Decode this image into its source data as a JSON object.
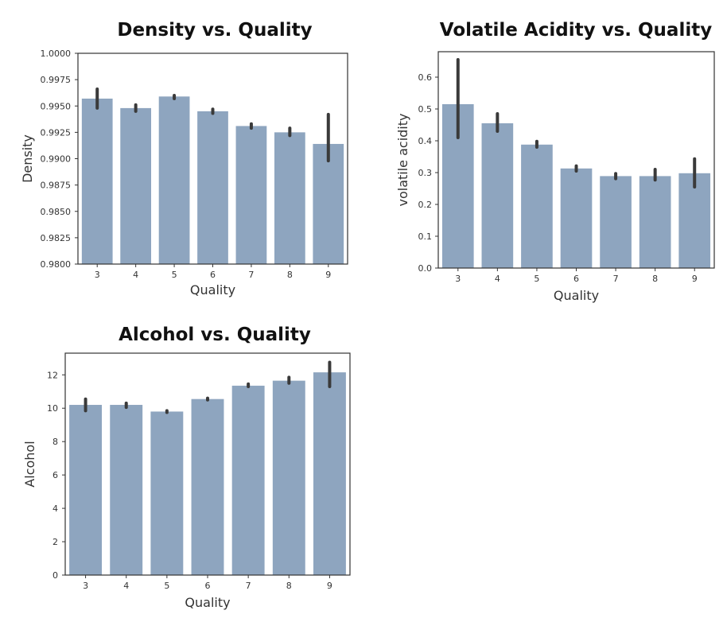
{
  "chart_data": [
    {
      "type": "bar",
      "title": "Density vs. Quality",
      "xlabel": "Quality",
      "ylabel": "Density",
      "categories": [
        "3",
        "4",
        "5",
        "6",
        "7",
        "8",
        "9"
      ],
      "values": [
        0.9957,
        0.9948,
        0.9959,
        0.9945,
        0.9931,
        0.9925,
        0.9914
      ],
      "error_low": [
        0.9948,
        0.9945,
        0.9957,
        0.9943,
        0.9929,
        0.9922,
        0.9898
      ],
      "error_high": [
        0.9966,
        0.9951,
        0.996,
        0.9947,
        0.9933,
        0.9929,
        0.9942
      ],
      "ylim": [
        0.98,
        1.0
      ],
      "yticks": [
        0.98,
        0.9825,
        0.985,
        0.9875,
        0.99,
        0.9925,
        0.995,
        0.9975,
        1.0
      ],
      "ytick_labels": [
        "0.9800",
        "0.9825",
        "0.9850",
        "0.9875",
        "0.9900",
        "0.9925",
        "0.9950",
        "0.9975",
        "1.0000"
      ],
      "grid": false,
      "bar_color": "#8ea5bf"
    },
    {
      "type": "bar",
      "title": "Volatile Acidity vs. Quality",
      "xlabel": "Quality",
      "ylabel": "volatile acidity",
      "categories": [
        "3",
        "4",
        "5",
        "6",
        "7",
        "8",
        "9"
      ],
      "values": [
        0.515,
        0.455,
        0.388,
        0.313,
        0.289,
        0.289,
        0.298
      ],
      "error_low": [
        0.41,
        0.43,
        0.38,
        0.305,
        0.281,
        0.277,
        0.255
      ],
      "error_high": [
        0.655,
        0.485,
        0.398,
        0.321,
        0.297,
        0.31,
        0.343
      ],
      "ylim": [
        0.0,
        0.68
      ],
      "yticks": [
        0.0,
        0.1,
        0.2,
        0.3,
        0.4,
        0.5,
        0.6
      ],
      "ytick_labels": [
        "0.0",
        "0.1",
        "0.2",
        "0.3",
        "0.4",
        "0.5",
        "0.6"
      ],
      "grid": false,
      "bar_color": "#8ea5bf"
    },
    {
      "type": "bar",
      "title": "Alcohol vs. Quality",
      "xlabel": "Quality",
      "ylabel": "Alcohol",
      "categories": [
        "3",
        "4",
        "5",
        "6",
        "7",
        "8",
        "9"
      ],
      "values": [
        10.2,
        10.2,
        9.8,
        10.55,
        11.35,
        11.65,
        12.15
      ],
      "error_low": [
        9.85,
        10.05,
        9.75,
        10.5,
        11.3,
        11.5,
        11.3
      ],
      "error_high": [
        10.55,
        10.3,
        9.85,
        10.6,
        11.45,
        11.85,
        12.75
      ],
      "ylim": [
        0,
        13.3
      ],
      "yticks": [
        0,
        2,
        4,
        6,
        8,
        10,
        12
      ],
      "ytick_labels": [
        "0",
        "2",
        "4",
        "6",
        "8",
        "10",
        "12"
      ],
      "grid": false,
      "bar_color": "#8ea5bf"
    }
  ]
}
